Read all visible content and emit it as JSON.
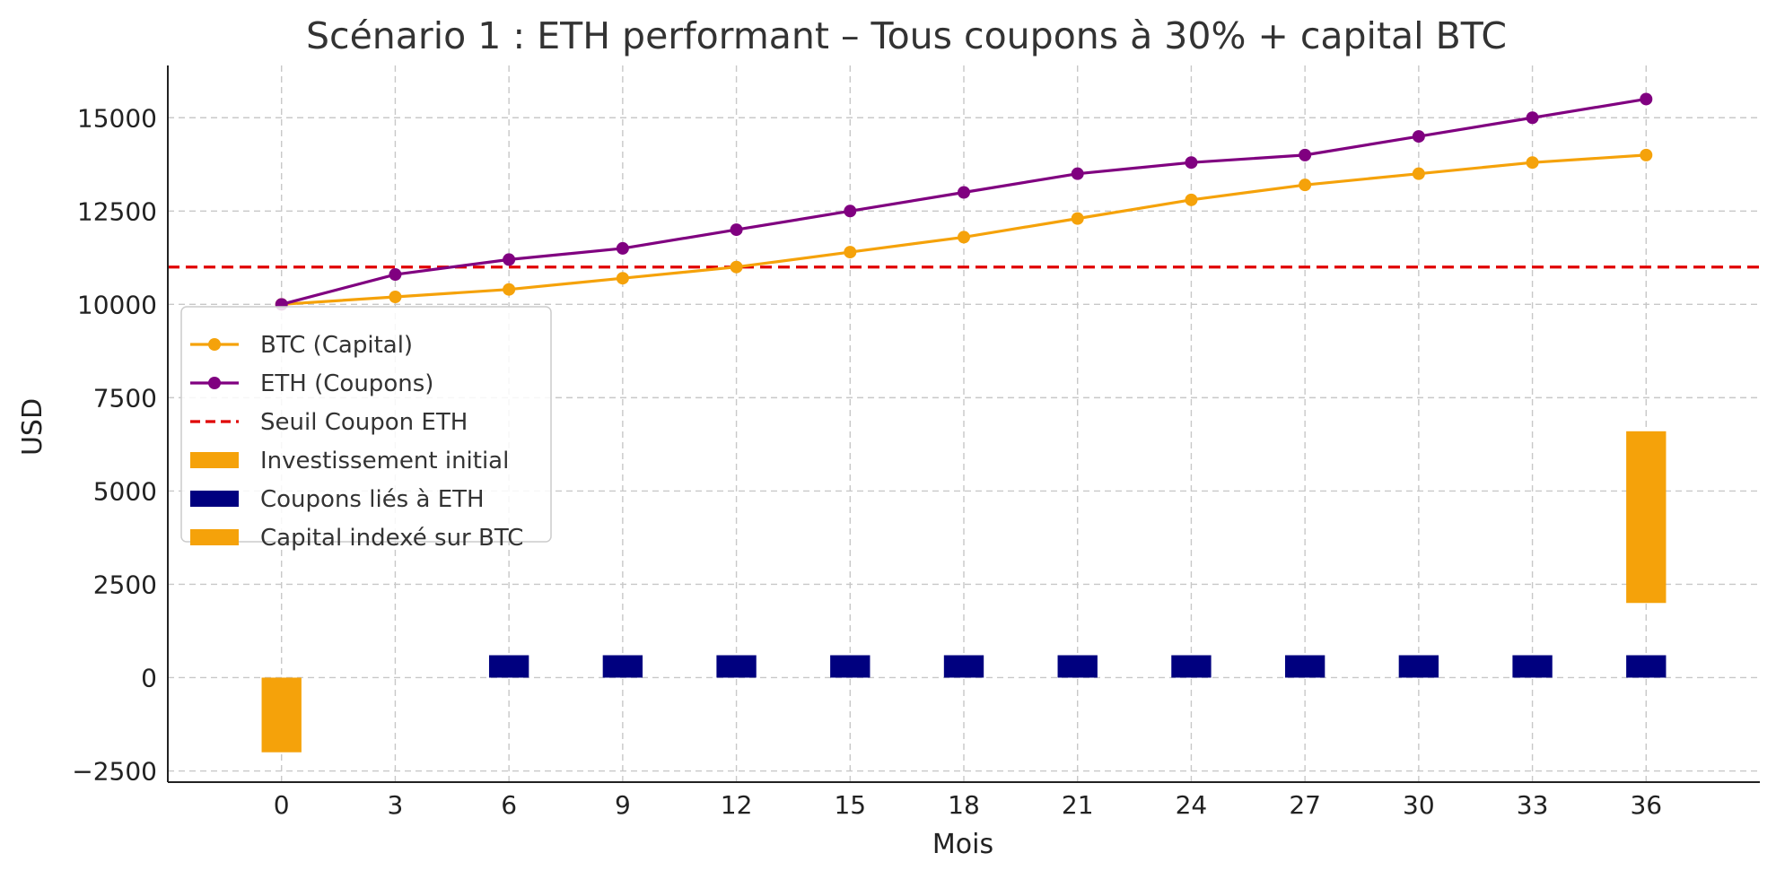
{
  "chart_data": {
    "type": "line",
    "title": "Scénario 1 : ETH performant – Tous coupons à 30% + capital BTC",
    "xlabel": "Mois",
    "ylabel": "USD",
    "xlim": [
      -3,
      39
    ],
    "ylim": [
      -2800,
      16400
    ],
    "x_ticks": [
      0,
      3,
      6,
      9,
      12,
      15,
      18,
      21,
      24,
      27,
      30,
      33,
      36
    ],
    "y_ticks": [
      -2500,
      0,
      2500,
      5000,
      7500,
      10000,
      12500,
      15000
    ],
    "y_tick_labels": [
      "−2500",
      "0",
      "2500",
      "5000",
      "7500",
      "10000",
      "12500",
      "15000"
    ],
    "grid": true,
    "legend_position": "center-left",
    "series": [
      {
        "name": "BTC (Capital)",
        "kind": "line",
        "color": "#f5a20a",
        "x": [
          0,
          3,
          6,
          9,
          12,
          15,
          18,
          21,
          24,
          27,
          30,
          33,
          36
        ],
        "values": [
          10000,
          10200,
          10400,
          10700,
          11000,
          11400,
          11800,
          12300,
          12800,
          13200,
          13500,
          13800,
          14000
        ]
      },
      {
        "name": "ETH (Coupons)",
        "kind": "line",
        "color": "#800080",
        "x": [
          0,
          3,
          6,
          9,
          12,
          15,
          18,
          21,
          24,
          27,
          30,
          33,
          36
        ],
        "values": [
          10000,
          10800,
          11200,
          11500,
          12000,
          12500,
          13000,
          13500,
          13800,
          14000,
          14500,
          15000,
          15500
        ]
      },
      {
        "name": "Seuil Coupon ETH",
        "kind": "hline",
        "color": "#e00000",
        "value": 11000
      },
      {
        "name": "Investissement initial",
        "kind": "bar",
        "color": "#f5a20a",
        "bars": [
          {
            "x": 0,
            "bottom": -2000,
            "top": 0
          }
        ]
      },
      {
        "name": "Coupons liés à ETH",
        "kind": "bar",
        "color": "#00007f",
        "bars": [
          {
            "x": 6,
            "bottom": 0,
            "top": 600
          },
          {
            "x": 9,
            "bottom": 0,
            "top": 600
          },
          {
            "x": 12,
            "bottom": 0,
            "top": 600
          },
          {
            "x": 15,
            "bottom": 0,
            "top": 600
          },
          {
            "x": 18,
            "bottom": 0,
            "top": 600
          },
          {
            "x": 21,
            "bottom": 0,
            "top": 600
          },
          {
            "x": 24,
            "bottom": 0,
            "top": 600
          },
          {
            "x": 27,
            "bottom": 0,
            "top": 600
          },
          {
            "x": 30,
            "bottom": 0,
            "top": 600
          },
          {
            "x": 33,
            "bottom": 0,
            "top": 600
          },
          {
            "x": 36,
            "bottom": 0,
            "top": 600
          }
        ]
      },
      {
        "name": "Capital indexé sur BTC",
        "kind": "bar",
        "color": "#f5a20a",
        "bars": [
          {
            "x": 36,
            "bottom": 2000,
            "top": 6600
          }
        ]
      }
    ],
    "legend": [
      {
        "label": "BTC (Capital)",
        "style": "line-marker",
        "color": "#f5a20a"
      },
      {
        "label": "ETH (Coupons)",
        "style": "line-marker",
        "color": "#800080"
      },
      {
        "label": "Seuil Coupon ETH",
        "style": "dashed",
        "color": "#e00000"
      },
      {
        "label": "Investissement initial",
        "style": "patch",
        "color": "#f5a20a"
      },
      {
        "label": "Coupons liés à ETH",
        "style": "patch",
        "color": "#00007f"
      },
      {
        "label": "Capital indexé sur BTC",
        "style": "patch",
        "color": "#f5a20a"
      }
    ]
  }
}
